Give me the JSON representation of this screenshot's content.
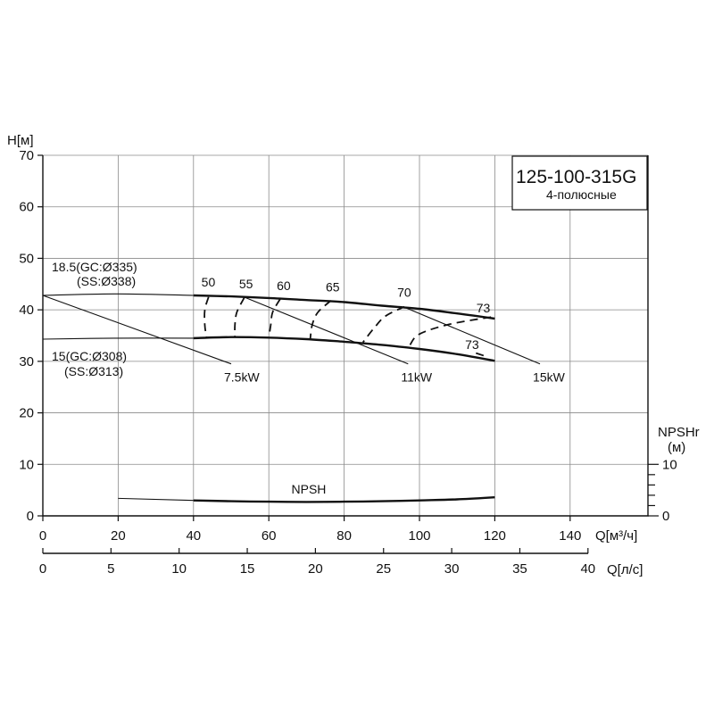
{
  "chart_data": {
    "type": "line",
    "title": "125-100-315G",
    "subtitle": "4-полюсные",
    "ylabel": "H[м]",
    "xlabel": "Q[м³/ч]",
    "x2label": "Q[л/с]",
    "y2label_line1": "NPSHr",
    "y2label_line2": "(м)",
    "xlim": [
      0,
      144
    ],
    "ylim": [
      0,
      70
    ],
    "grid": true,
    "x_ticks": [
      0,
      20,
      40,
      60,
      80,
      100,
      120,
      140
    ],
    "y_ticks": [
      0,
      10,
      20,
      30,
      40,
      50,
      60,
      70
    ],
    "x2_ticks": [
      0,
      5,
      10,
      15,
      20,
      25,
      30,
      35,
      40
    ],
    "y2_ticks": [
      0,
      10
    ],
    "y2_minor": [
      2,
      4,
      6,
      8
    ],
    "y2_scale_per_unit": 1.0,
    "head_curves": [
      {
        "label_line1": "18.5(GC:Ø335)",
        "label_line2": "(SS:Ø338)",
        "thin_x": [
          0,
          20,
          40
        ],
        "thin_y": [
          42.8,
          43.1,
          42.8
        ],
        "thick_x": [
          40,
          50,
          60,
          70,
          80,
          90,
          100,
          110,
          120
        ],
        "thick_y": [
          42.8,
          42.6,
          42.3,
          41.9,
          41.5,
          40.8,
          40.2,
          39.3,
          38.3
        ]
      },
      {
        "label_line1": "15(GC:Ø308)",
        "label_line2": "(SS:Ø313)",
        "thin_x": [
          0,
          20,
          40
        ],
        "thin_y": [
          34.3,
          34.5,
          34.5
        ],
        "thick_x": [
          40,
          50,
          60,
          70,
          80,
          90,
          100,
          110,
          120
        ],
        "thick_y": [
          34.5,
          34.7,
          34.6,
          34.3,
          33.8,
          33.2,
          32.4,
          31.4,
          30.1
        ]
      }
    ],
    "power_lines": [
      {
        "label": "7.5kW",
        "x": [
          0,
          50
        ],
        "y": [
          42.8,
          29.5
        ]
      },
      {
        "label": "11kW",
        "x": [
          53,
          97
        ],
        "y": [
          42.6,
          29.5
        ]
      },
      {
        "label": "15kW",
        "x": [
          96,
          132
        ],
        "y": [
          40.5,
          29.5
        ]
      }
    ],
    "efficiency_curves": [
      {
        "label": "50",
        "x": [
          44,
          43,
          43,
          43.5
        ],
        "y": [
          42.5,
          40,
          37,
          34.5
        ]
      },
      {
        "label": "55",
        "x": [
          53.5,
          51.5,
          51,
          51
        ],
        "y": [
          42.4,
          39.5,
          37,
          34.6
        ]
      },
      {
        "label": "60",
        "x": [
          63,
          61,
          60.5,
          60
        ],
        "y": [
          42.1,
          39.5,
          37,
          34.6
        ]
      },
      {
        "label": "65",
        "x": [
          76.5,
          73,
          71.5,
          71
        ],
        "y": [
          41.8,
          39.5,
          37,
          34.3
        ]
      },
      {
        "label": "70",
        "x": [
          96,
          91,
          88,
          85
        ],
        "y": [
          40.6,
          38.8,
          36.5,
          33.7
        ]
      },
      {
        "label": "73",
        "x": [
          119,
          108,
          100,
          97.5
        ],
        "y": [
          38.6,
          37.2,
          35.3,
          33.2
        ]
      },
      {
        "label": "73",
        "x": [
          115,
          117.5
        ],
        "y": [
          31.6,
          31.0
        ]
      }
    ],
    "efficiency_label_pos": [
      {
        "x": 44,
        "y": 44.5
      },
      {
        "x": 54,
        "y": 44.2
      },
      {
        "x": 64,
        "y": 43.8
      },
      {
        "x": 77,
        "y": 43.6
      },
      {
        "x": 96,
        "y": 42.5
      },
      {
        "x": 117,
        "y": 39.5
      },
      {
        "x": 114,
        "y": 32.4
      }
    ],
    "npsh": {
      "label": "NPSH",
      "thin_x": [
        20,
        40
      ],
      "thin_y": [
        3.4,
        3.0
      ],
      "thick_x": [
        40,
        50,
        60,
        70,
        80,
        90,
        100,
        110,
        120
      ],
      "thick_y": [
        3.0,
        2.85,
        2.75,
        2.7,
        2.75,
        2.85,
        3.0,
        3.2,
        3.6
      ]
    }
  }
}
